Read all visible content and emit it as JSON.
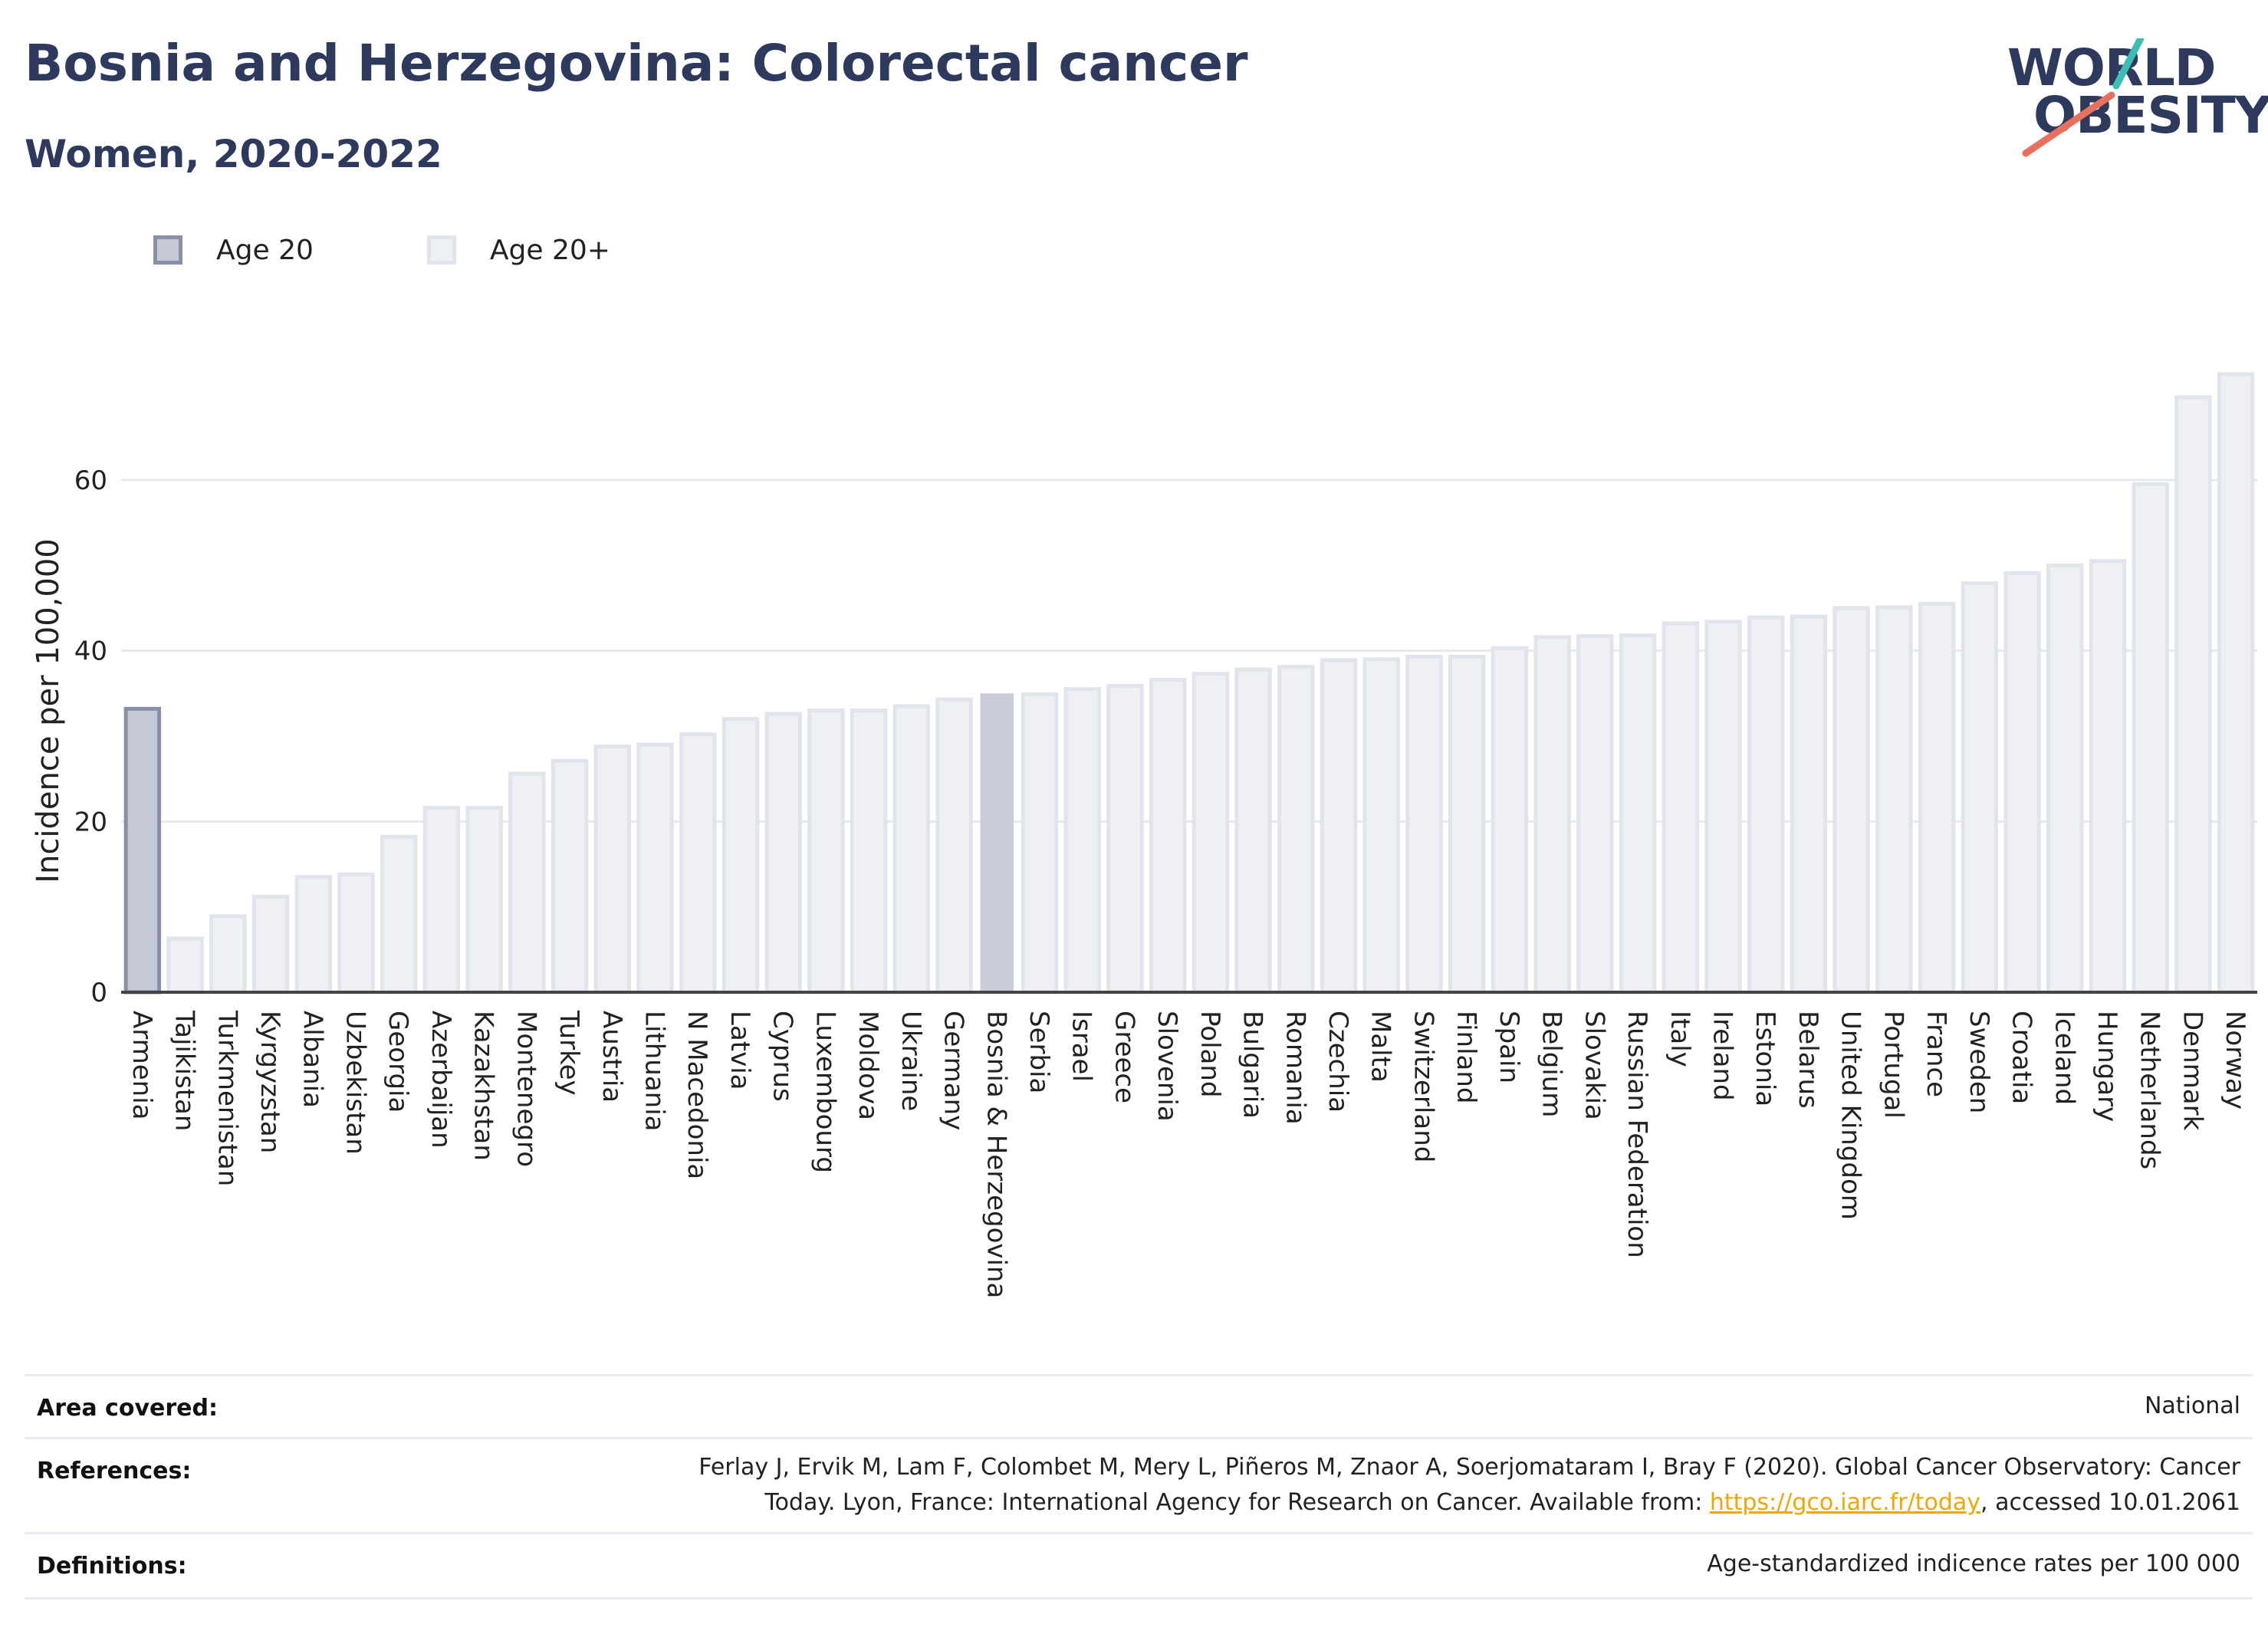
{
  "header": {
    "title": "Bosnia and Herzegovina: Colorectal cancer",
    "subtitle": "Women, 2020-2022"
  },
  "logo": {
    "line1": "WORLD",
    "line2": "OBESITY",
    "accent_teal": "#3bbfb4",
    "accent_coral": "#e8705f"
  },
  "legend": [
    {
      "label": "Age 20",
      "color": "#c5c9d6",
      "border": "#8890a8"
    },
    {
      "label": "Age 20+",
      "color": "#eef0f4",
      "border": "#e1e4ec"
    }
  ],
  "chart_data": {
    "type": "bar",
    "ylabel": "Incidence per 100,000",
    "ylim": [
      0,
      73
    ],
    "yticks": [
      0,
      20,
      40,
      60
    ],
    "grid": true,
    "categories": [
      "Armenia",
      "Tajikistan",
      "Turkmenistan",
      "Kyrgyzstan",
      "Albania",
      "Uzbekistan",
      "Georgia",
      "Azerbaijan",
      "Kazakhstan",
      "Montenegro",
      "Turkey",
      "Austria",
      "Lithuania",
      "N Macedonia",
      "Latvia",
      "Cyprus",
      "Luxembourg",
      "Moldova",
      "Ukraine",
      "Germany",
      "Bosnia & Herzegovina",
      "Serbia",
      "Israel",
      "Greece",
      "Slovenia",
      "Poland",
      "Bulgaria",
      "Romania",
      "Czechia",
      "Malta",
      "Switzerland",
      "Finland",
      "Spain",
      "Belgium",
      "Slovakia",
      "Russian Federation",
      "Italy",
      "Ireland",
      "Estonia",
      "Belarus",
      "United Kingdom",
      "Portugal",
      "France",
      "Sweden",
      "Croatia",
      "Iceland",
      "Hungary",
      "Netherlands",
      "Denmark",
      "Norway"
    ],
    "values": [
      33.2,
      6.3,
      8.9,
      11.2,
      13.5,
      13.8,
      18.2,
      21.6,
      21.6,
      25.6,
      27.1,
      28.8,
      29.0,
      30.2,
      32.0,
      32.6,
      33.0,
      33.0,
      33.5,
      34.3,
      35.0,
      34.9,
      35.5,
      35.9,
      36.6,
      37.3,
      37.8,
      38.1,
      38.9,
      39.0,
      39.3,
      39.3,
      40.3,
      41.6,
      41.7,
      41.8,
      43.2,
      43.4,
      43.9,
      44.0,
      45.0,
      45.1,
      45.5,
      47.9,
      49.1,
      50.0,
      50.5,
      59.5,
      69.7,
      72.4
    ],
    "series_assignment": [
      "Age 20",
      "Age 20+",
      "Age 20+",
      "Age 20+",
      "Age 20+",
      "Age 20+",
      "Age 20+",
      "Age 20+",
      "Age 20+",
      "Age 20+",
      "Age 20+",
      "Age 20+",
      "Age 20+",
      "Age 20+",
      "Age 20+",
      "Age 20+",
      "Age 20+",
      "Age 20+",
      "Age 20+",
      "Age 20+",
      "Age 20+",
      "Age 20+",
      "Age 20+",
      "Age 20+",
      "Age 20+",
      "Age 20+",
      "Age 20+",
      "Age 20+",
      "Age 20+",
      "Age 20+",
      "Age 20+",
      "Age 20+",
      "Age 20+",
      "Age 20+",
      "Age 20+",
      "Age 20+",
      "Age 20+",
      "Age 20+",
      "Age 20+",
      "Age 20+",
      "Age 20+",
      "Age 20+",
      "Age 20+",
      "Age 20+",
      "Age 20+",
      "Age 20+",
      "Age 20+",
      "Age 20+",
      "Age 20+",
      "Age 20+"
    ],
    "highlight_category": "Bosnia & Herzegovina",
    "highlight_color": "#c8cbd8"
  },
  "info": {
    "area": {
      "key": "Area covered:",
      "value": "National"
    },
    "references": {
      "key": "References:",
      "line1": "Ferlay J, Ervik M, Lam F, Colombet M, Mery L, Piñeros M, Znaor A, Soerjomataram I, Bray F (2020). Global Cancer Observatory: Cancer",
      "line2_pre": "Today. Lyon, France: International Agency for Research on Cancer. Available from: ",
      "link": "https://gco.iarc.fr/today",
      "line2_post": ", accessed 10.01.2061"
    },
    "definitions": {
      "key": "Definitions:",
      "value": "Age-standardized indicence rates per 100 000"
    }
  }
}
